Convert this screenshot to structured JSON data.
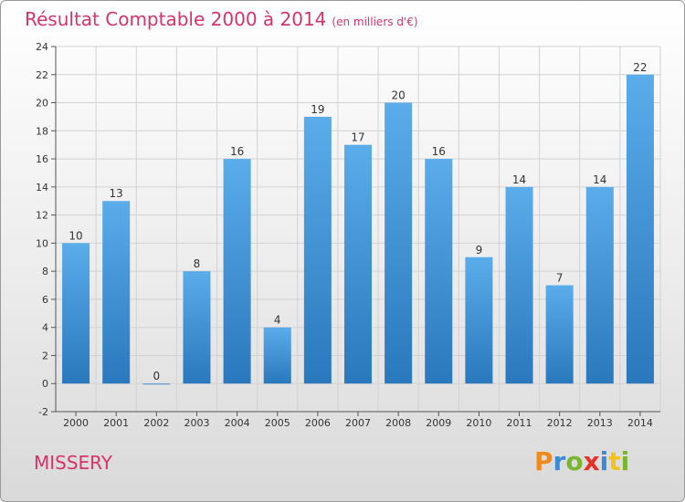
{
  "chart_data": {
    "type": "bar",
    "title": "Résultat Comptable 2000 à 2014",
    "subtitle": "(en milliers d'€)",
    "categories": [
      "2000",
      "2001",
      "2002",
      "2003",
      "2004",
      "2005",
      "2006",
      "2007",
      "2008",
      "2009",
      "2010",
      "2011",
      "2012",
      "2013",
      "2014"
    ],
    "values": [
      10,
      13,
      0,
      8,
      16,
      4,
      19,
      17,
      20,
      16,
      9,
      14,
      7,
      14,
      22
    ],
    "ylim": [
      -2,
      24
    ],
    "yticks": [
      -2,
      0,
      2,
      4,
      6,
      8,
      10,
      12,
      14,
      16,
      18,
      20,
      22,
      24
    ],
    "xlabel": "",
    "ylabel": "",
    "grid": true,
    "bar_color": "#3d8fd9"
  },
  "footer": {
    "town": "MISSERY",
    "logo_letters": [
      "P",
      "r",
      "o",
      "x",
      "i",
      "t",
      "i"
    ],
    "logo_colors": [
      "#f08a1c",
      "#3a8ad6",
      "#7ab532",
      "#e2332b",
      "#3a8ad6",
      "#f2c21b",
      "#7ab532"
    ]
  }
}
